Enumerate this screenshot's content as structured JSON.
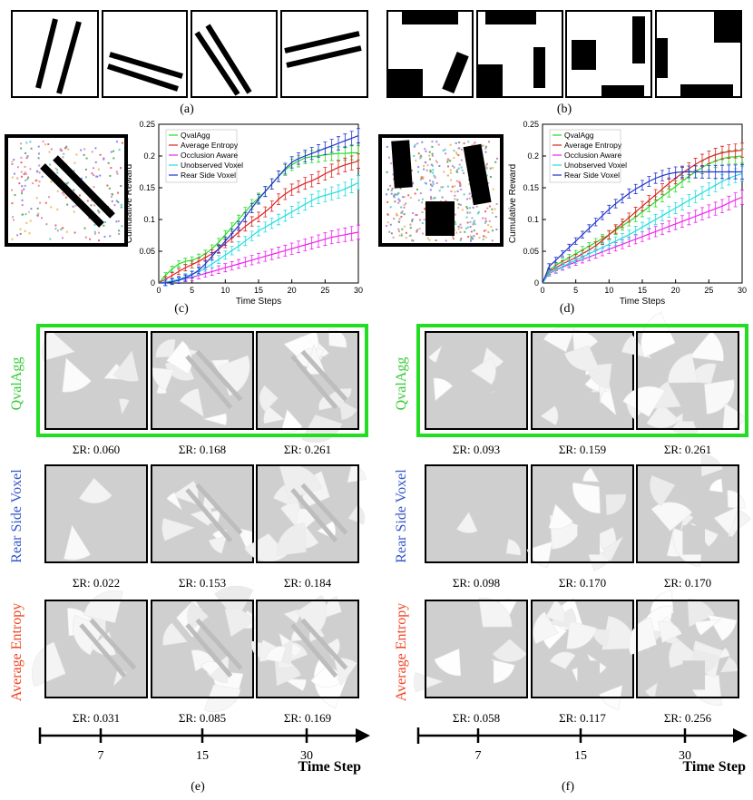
{
  "panel_labels": {
    "a": "(a)",
    "b": "(b)",
    "c": "(c)",
    "d": "(d)",
    "e": "(e)",
    "f": "(f)"
  },
  "methods": {
    "qvalagg": "QvalAgg",
    "rear": "Rear Side Voxel",
    "avg": "Average Entropy"
  },
  "method_colors": {
    "qvalagg": "#33cc33",
    "rear": "#3355cc",
    "avg": "#ee4422"
  },
  "rewards_e": {
    "qvalagg": [
      "ΣR: 0.060",
      "ΣR: 0.168",
      "ΣR: 0.261"
    ],
    "rear": [
      "ΣR: 0.022",
      "ΣR: 0.153",
      "ΣR: 0.184"
    ],
    "avg": [
      "ΣR: 0.031",
      "ΣR: 0.085",
      "ΣR: 0.169"
    ]
  },
  "rewards_f": {
    "qvalagg": [
      "ΣR: 0.093",
      "ΣR: 0.159",
      "ΣR: 0.261"
    ],
    "rear": [
      "ΣR: 0.098",
      "ΣR: 0.170",
      "ΣR: 0.170"
    ],
    "avg": [
      "ΣR: 0.058",
      "ΣR: 0.117",
      "ΣR: 0.256"
    ]
  },
  "timeline": {
    "ticks": [
      "7",
      "15",
      "30"
    ],
    "label": "Time Step"
  },
  "chart_data": [
    {
      "type": "line",
      "xlabel": "Time Steps",
      "ylabel": "Cumulative Reward",
      "xlim": [
        0,
        30
      ],
      "ylim": [
        0,
        0.25
      ],
      "xticks": [
        "0",
        "5",
        "10",
        "15",
        "20",
        "25",
        "30"
      ],
      "yticks": [
        "0",
        "0.05",
        "0.1",
        "0.15",
        "0.2",
        "0.25"
      ],
      "legend": "top-left",
      "x": [
        1,
        2,
        3,
        4,
        5,
        6,
        7,
        8,
        9,
        10,
        11,
        12,
        13,
        14,
        15,
        16,
        17,
        18,
        19,
        20,
        21,
        22,
        23,
        24,
        25,
        26,
        27,
        28,
        29,
        30
      ],
      "series": [
        {
          "name": "QvalAgg",
          "color": "#22dd22",
          "values": [
            0.012,
            0.022,
            0.03,
            0.034,
            0.036,
            0.04,
            0.046,
            0.054,
            0.064,
            0.076,
            0.088,
            0.1,
            0.112,
            0.124,
            0.134,
            0.144,
            0.156,
            0.168,
            0.178,
            0.186,
            0.192,
            0.197,
            0.199,
            0.2,
            0.202,
            0.203,
            0.204,
            0.204,
            0.205,
            0.205
          ]
        },
        {
          "name": "Average Entropy",
          "color": "#dd2222",
          "values": [
            0.006,
            0.012,
            0.018,
            0.024,
            0.029,
            0.034,
            0.04,
            0.046,
            0.053,
            0.062,
            0.071,
            0.08,
            0.089,
            0.097,
            0.104,
            0.112,
            0.121,
            0.132,
            0.14,
            0.147,
            0.152,
            0.157,
            0.161,
            0.166,
            0.172,
            0.177,
            0.182,
            0.186,
            0.189,
            0.192
          ]
        },
        {
          "name": "Occlusion Aware",
          "color": "#ee22ee",
          "values": [
            0.001,
            0.003,
            0.005,
            0.007,
            0.009,
            0.012,
            0.015,
            0.018,
            0.021,
            0.024,
            0.027,
            0.03,
            0.033,
            0.036,
            0.039,
            0.042,
            0.045,
            0.048,
            0.051,
            0.054,
            0.057,
            0.06,
            0.063,
            0.066,
            0.069,
            0.072,
            0.074,
            0.076,
            0.078,
            0.08
          ]
        },
        {
          "name": "Unobserved Voxel",
          "color": "#22dddd",
          "values": [
            0.001,
            0.003,
            0.006,
            0.01,
            0.014,
            0.018,
            0.023,
            0.03,
            0.037,
            0.044,
            0.051,
            0.058,
            0.066,
            0.074,
            0.082,
            0.088,
            0.094,
            0.1,
            0.106,
            0.112,
            0.118,
            0.124,
            0.13,
            0.135,
            0.138,
            0.141,
            0.144,
            0.148,
            0.153,
            0.158
          ]
        },
        {
          "name": "Rear Side Voxel",
          "color": "#2233cc",
          "values": [
            0.0,
            0.002,
            0.004,
            0.008,
            0.013,
            0.02,
            0.03,
            0.042,
            0.054,
            0.066,
            0.078,
            0.09,
            0.104,
            0.118,
            0.132,
            0.144,
            0.156,
            0.168,
            0.18,
            0.19,
            0.196,
            0.2,
            0.204,
            0.208,
            0.212,
            0.216,
            0.22,
            0.224,
            0.228,
            0.232
          ]
        }
      ]
    },
    {
      "type": "line",
      "xlabel": "Time Steps",
      "ylabel": "Cumulative Reward",
      "xlim": [
        0,
        30
      ],
      "ylim": [
        0,
        0.25
      ],
      "xticks": [
        "0",
        "5",
        "10",
        "15",
        "20",
        "25",
        "30"
      ],
      "yticks": [
        "0",
        "0.05",
        "0.1",
        "0.15",
        "0.2",
        "0.25"
      ],
      "legend": "top-left",
      "x": [
        1,
        2,
        3,
        4,
        5,
        6,
        7,
        8,
        9,
        10,
        11,
        12,
        13,
        14,
        15,
        16,
        17,
        18,
        19,
        20,
        21,
        22,
        23,
        24,
        25,
        26,
        27,
        28,
        29,
        30
      ],
      "series": [
        {
          "name": "QvalAgg",
          "color": "#22dd22",
          "values": [
            0.02,
            0.028,
            0.034,
            0.04,
            0.046,
            0.052,
            0.058,
            0.064,
            0.07,
            0.076,
            0.083,
            0.09,
            0.097,
            0.104,
            0.112,
            0.12,
            0.128,
            0.136,
            0.144,
            0.152,
            0.16,
            0.168,
            0.175,
            0.182,
            0.188,
            0.192,
            0.196,
            0.198,
            0.199,
            0.2
          ]
        },
        {
          "name": "Average Entropy",
          "color": "#dd2222",
          "values": [
            0.018,
            0.024,
            0.03,
            0.035,
            0.04,
            0.046,
            0.052,
            0.059,
            0.067,
            0.076,
            0.085,
            0.094,
            0.103,
            0.112,
            0.121,
            0.13,
            0.139,
            0.148,
            0.157,
            0.165,
            0.173,
            0.18,
            0.187,
            0.193,
            0.198,
            0.202,
            0.205,
            0.207,
            0.208,
            0.209
          ]
        },
        {
          "name": "Occlusion Aware",
          "color": "#ee22ee",
          "values": [
            0.015,
            0.02,
            0.025,
            0.029,
            0.033,
            0.037,
            0.041,
            0.045,
            0.049,
            0.053,
            0.057,
            0.061,
            0.065,
            0.069,
            0.073,
            0.077,
            0.081,
            0.085,
            0.089,
            0.093,
            0.097,
            0.101,
            0.105,
            0.109,
            0.113,
            0.117,
            0.121,
            0.126,
            0.131,
            0.135
          ]
        },
        {
          "name": "Unobserved Voxel",
          "color": "#22dddd",
          "values": [
            0.016,
            0.021,
            0.026,
            0.031,
            0.036,
            0.041,
            0.046,
            0.051,
            0.056,
            0.061,
            0.066,
            0.071,
            0.076,
            0.082,
            0.088,
            0.094,
            0.1,
            0.106,
            0.112,
            0.118,
            0.124,
            0.13,
            0.136,
            0.142,
            0.148,
            0.154,
            0.16,
            0.165,
            0.169,
            0.172
          ]
        },
        {
          "name": "Rear Side Voxel",
          "color": "#2233cc",
          "values": [
            0.026,
            0.036,
            0.046,
            0.056,
            0.066,
            0.076,
            0.086,
            0.096,
            0.106,
            0.116,
            0.125,
            0.133,
            0.141,
            0.148,
            0.154,
            0.16,
            0.165,
            0.169,
            0.172,
            0.174,
            0.175,
            0.175,
            0.175,
            0.175,
            0.175,
            0.175,
            0.175,
            0.175,
            0.175,
            0.175
          ]
        }
      ]
    }
  ]
}
